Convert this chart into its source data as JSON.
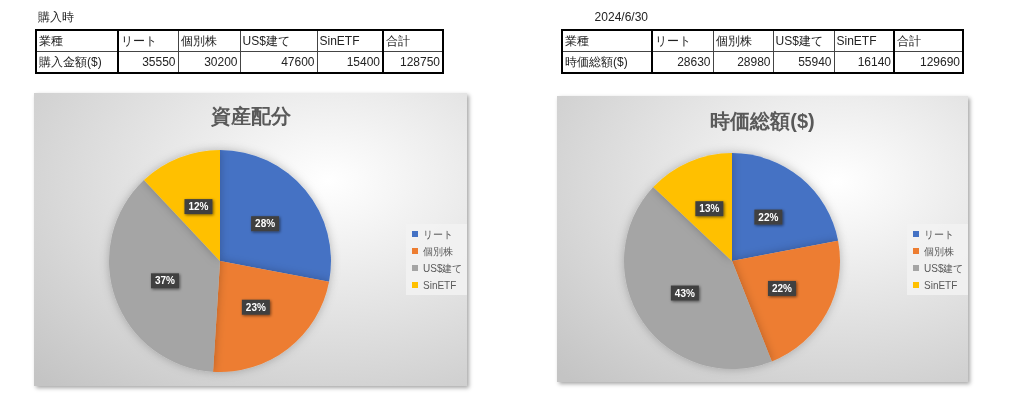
{
  "chart_data": [
    {
      "type": "other",
      "subtitle": "購入時",
      "xlabel": "業種",
      "ylabel": "購入金額($)",
      "categories": [
        "リート",
        "個別株",
        "US$建て",
        "SinETF"
      ],
      "values": [
        35550,
        30200,
        47600,
        15400
      ],
      "data_labels": true,
      "totals": [
        "128750"
      ],
      "annotations": [
        "合計"
      ]
    },
    {
      "type": "other",
      "subtitle": "2024/6/30",
      "xlabel": "業種",
      "ylabel": "時価総額($)",
      "categories": [
        "リート",
        "個別株",
        "US$建て",
        "SinETF"
      ],
      "values": [
        28630,
        28980,
        55940,
        16140
      ],
      "data_labels": true,
      "totals": [
        "129690"
      ],
      "annotations": [
        "合計"
      ]
    },
    {
      "type": "pie",
      "title": "資産配分",
      "categories": [
        "リート",
        "個別株",
        "US$建て",
        "SinETF"
      ],
      "values": [
        28,
        23,
        37,
        12
      ],
      "colors": [
        "#4472c4",
        "#ed7d31",
        "#a5a5a5",
        "#ffc000"
      ],
      "value_labels": [
        "28%",
        "23%",
        "37%",
        "12%"
      ],
      "legend": "right"
    },
    {
      "type": "pie",
      "title": "時価総額($)",
      "categories": [
        "リート",
        "個別株",
        "US$建て",
        "SinETF"
      ],
      "values": [
        22,
        22,
        43,
        13
      ],
      "colors": [
        "#4472c4",
        "#ed7d31",
        "#a5a5a5",
        "#ffc000"
      ],
      "value_labels": [
        "22%",
        "22%",
        "43%",
        "13%"
      ],
      "legend": "right"
    }
  ]
}
